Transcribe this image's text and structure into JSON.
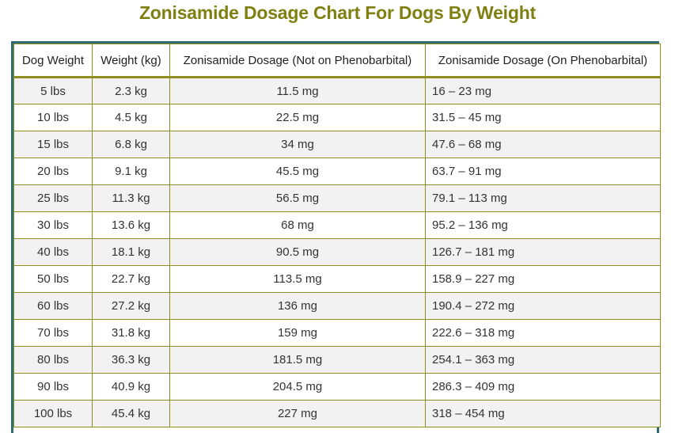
{
  "title": "Zonisamide Dosage Chart For Dogs By Weight",
  "table": {
    "headers": [
      "Dog Weight",
      "Weight (kg)",
      "Zonisamide Dosage (Not on Phenobarbital)",
      "Zonisamide Dosage (On Phenobarbital)"
    ],
    "rows": [
      [
        "5 lbs",
        "2.3 kg",
        "11.5 mg",
        "16 – 23 mg"
      ],
      [
        "10 lbs",
        "4.5 kg",
        "22.5 mg",
        "31.5 – 45 mg"
      ],
      [
        "15 lbs",
        "6.8 kg",
        "34 mg",
        "47.6 – 68 mg"
      ],
      [
        "20 lbs",
        "9.1 kg",
        "45.5 mg",
        "63.7 – 91 mg"
      ],
      [
        "25 lbs",
        "11.3 kg",
        "56.5 mg",
        "79.1 – 113 mg"
      ],
      [
        "30 lbs",
        "13.6 kg",
        "68 mg",
        "95.2 – 136 mg"
      ],
      [
        "40 lbs",
        "18.1 kg",
        "90.5 mg",
        "126.7 – 181 mg"
      ],
      [
        "50 lbs",
        "22.7 kg",
        "113.5 mg",
        "158.9 – 227 mg"
      ],
      [
        "60 lbs",
        "27.2 kg",
        "136 mg",
        "190.4 – 272 mg"
      ],
      [
        "70 lbs",
        "31.8 kg",
        "159 mg",
        "222.6 – 318 mg"
      ],
      [
        "80 lbs",
        "36.3 kg",
        "181.5 mg",
        "254.1 – 363 mg"
      ],
      [
        "90 lbs",
        "40.9 kg",
        "204.5 mg",
        "286.3 – 409 mg"
      ],
      [
        "100 lbs",
        "45.4 kg",
        "227 mg",
        "318 – 454 mg"
      ]
    ]
  },
  "colors": {
    "title": "#7f7f12",
    "frame": "#2f6f73",
    "cell_border": "#8f8f1f",
    "row_alt": "#f2f2f2"
  }
}
